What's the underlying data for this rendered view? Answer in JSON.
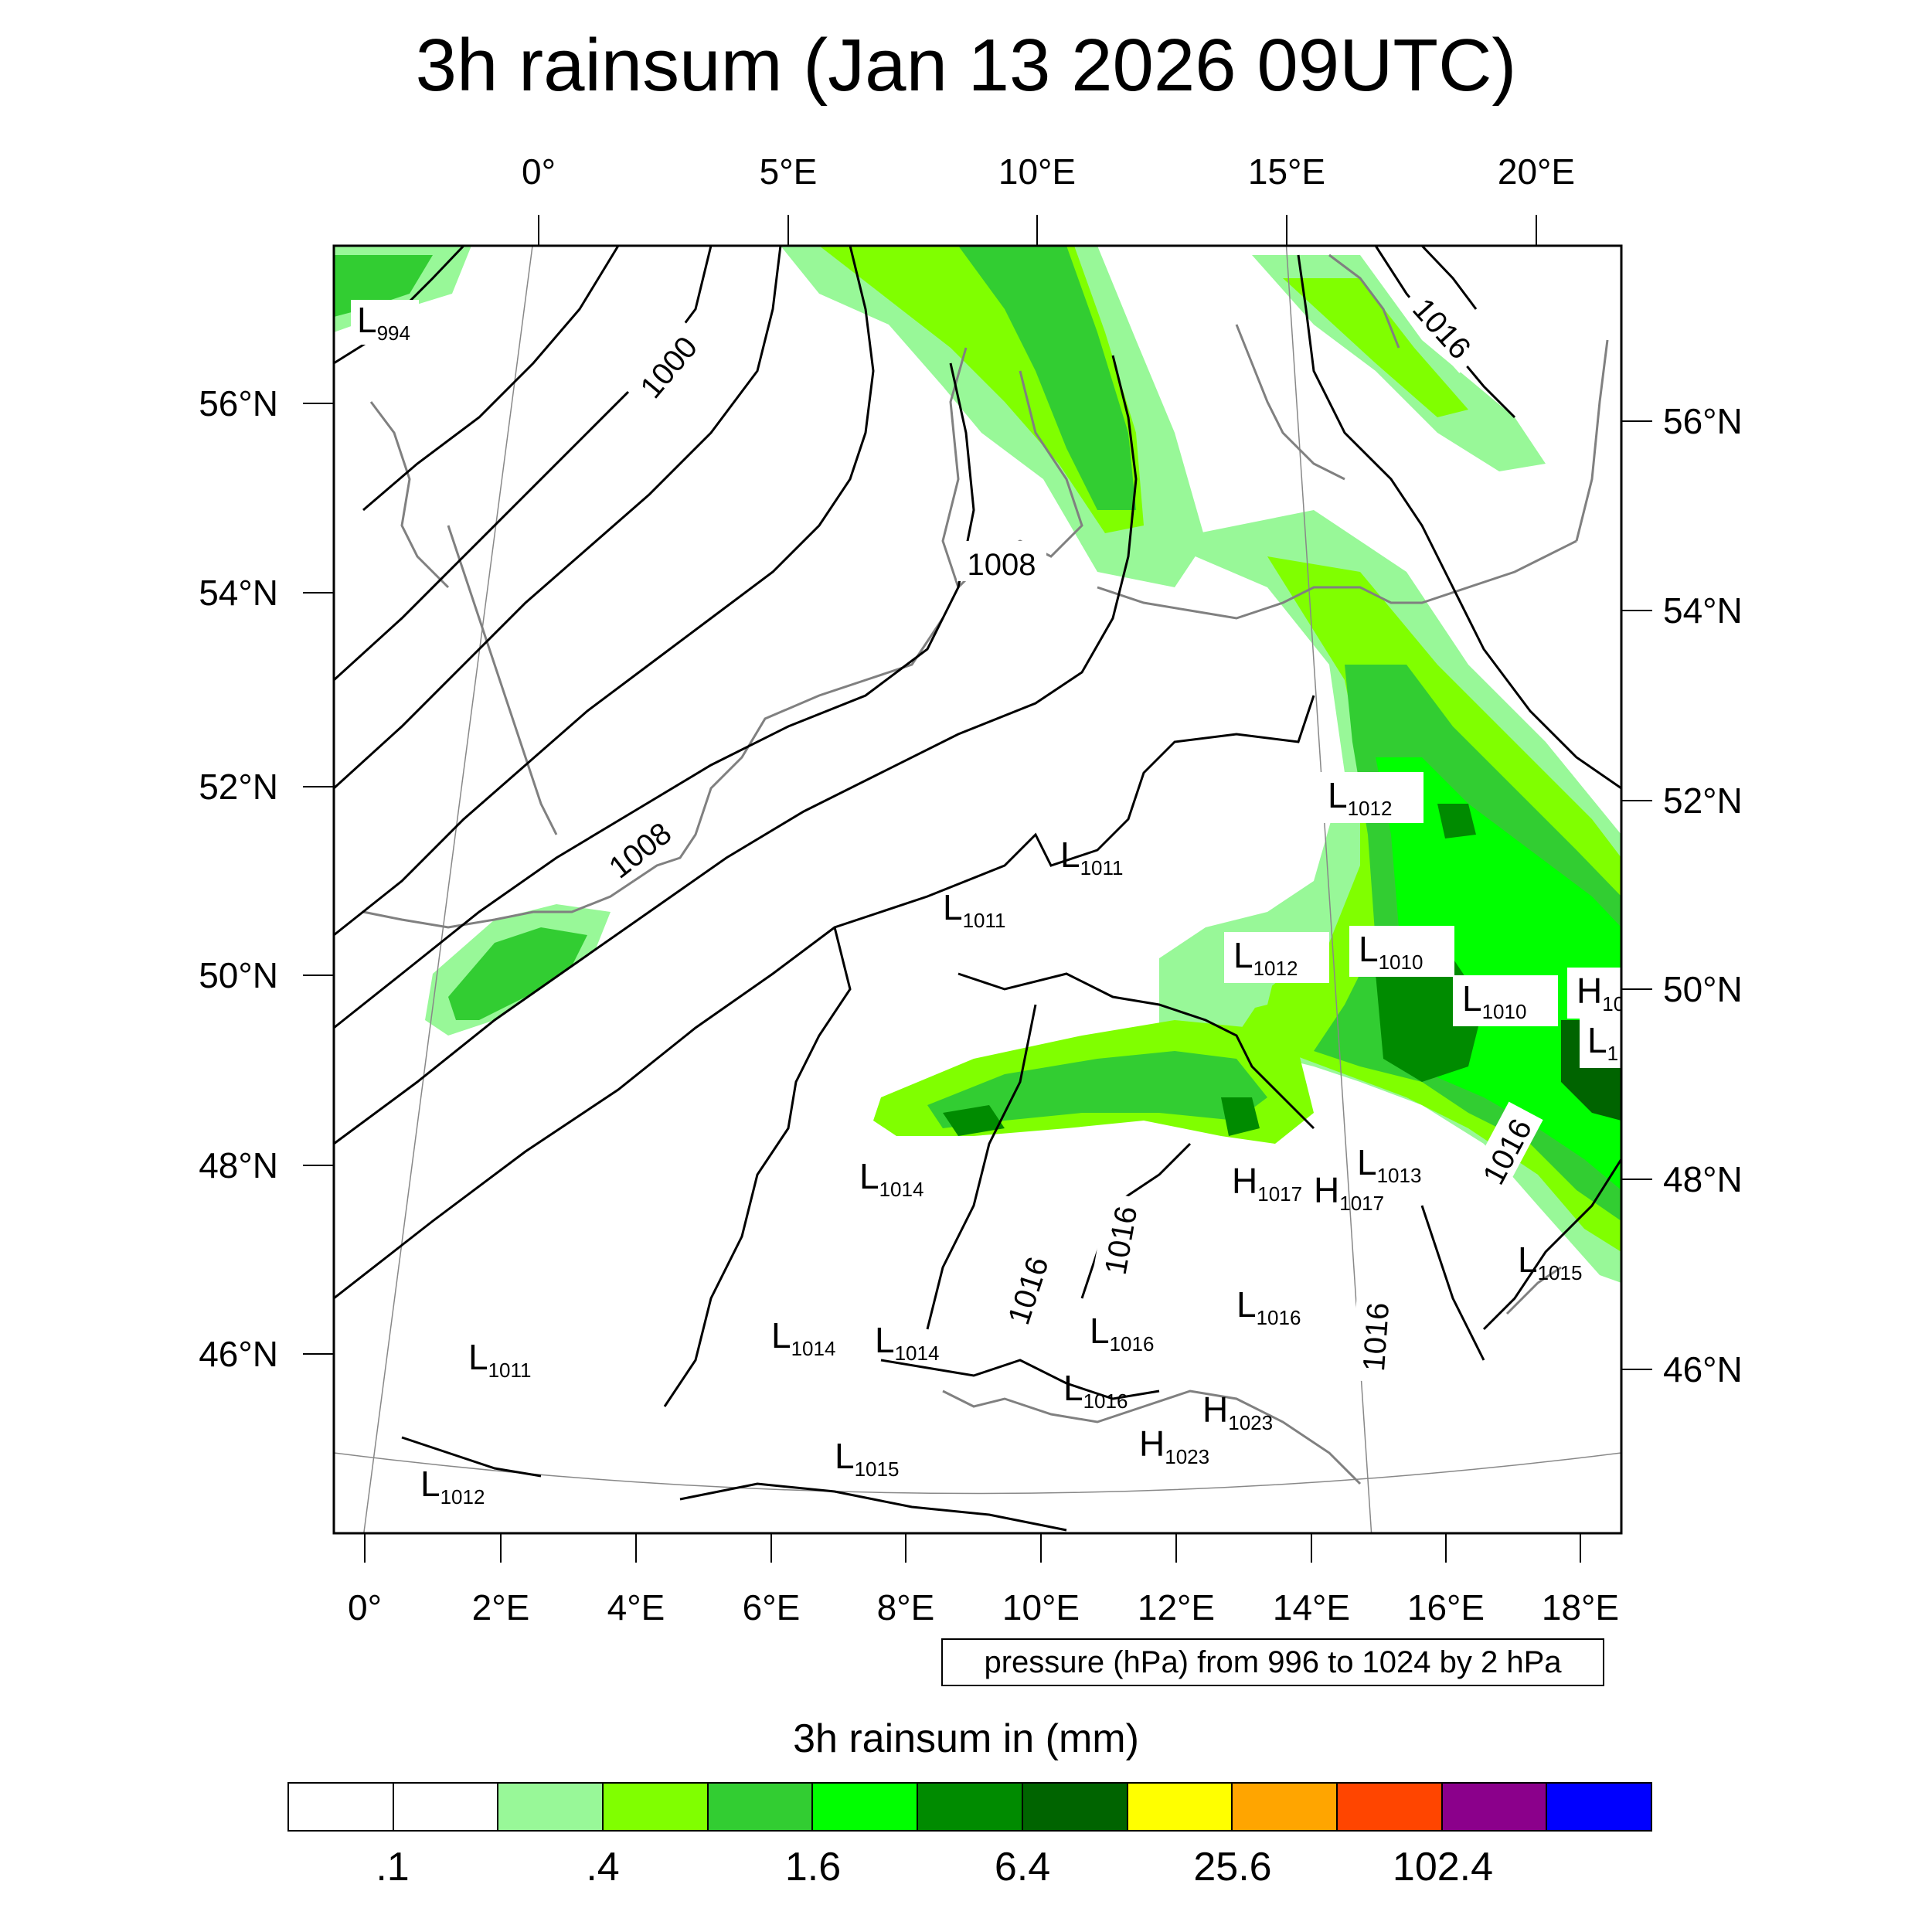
{
  "title": "3h rainsum (Jan 13 2026 09UTC)",
  "top_lon_labels": [
    "0°",
    "5°E",
    "10°E",
    "15°E",
    "20°E"
  ],
  "bottom_lon_labels": [
    "0°",
    "2°E",
    "4°E",
    "6°E",
    "8°E",
    "10°E",
    "12°E",
    "14°E",
    "16°E",
    "18°E"
  ],
  "left_lat_labels": [
    "56°N",
    "54°N",
    "52°N",
    "50°N",
    "48°N",
    "46°N"
  ],
  "right_lat_labels": [
    "56°N",
    "54°N",
    "52°N",
    "50°N",
    "48°N",
    "46°N"
  ],
  "contour_labels": [
    "1000",
    "1008",
    "1008",
    "1016",
    "1016",
    "1016",
    "1016",
    "1016"
  ],
  "pressure_centers": [
    {
      "type": "L",
      "value": "994"
    },
    {
      "type": "L",
      "value": "1012"
    },
    {
      "type": "L",
      "value": "1011"
    },
    {
      "type": "L",
      "value": "1011"
    },
    {
      "type": "L",
      "value": "1012"
    },
    {
      "type": "L",
      "value": "1010"
    },
    {
      "type": "L",
      "value": "1010"
    },
    {
      "type": "H",
      "value": "10"
    },
    {
      "type": "L",
      "value": "1"
    },
    {
      "type": "L",
      "value": "1014"
    },
    {
      "type": "H",
      "value": "1017"
    },
    {
      "type": "H",
      "value": "1017"
    },
    {
      "type": "L",
      "value": "1013"
    },
    {
      "type": "L",
      "value": "1015"
    },
    {
      "type": "L",
      "value": "1016"
    },
    {
      "type": "L",
      "value": "1011"
    },
    {
      "type": "L",
      "value": "1014"
    },
    {
      "type": "L",
      "value": "1014"
    },
    {
      "type": "L",
      "value": "1016"
    },
    {
      "type": "L",
      "value": "1016"
    },
    {
      "type": "H",
      "value": "1023"
    },
    {
      "type": "H",
      "value": "1023"
    },
    {
      "type": "L",
      "value": "1015"
    },
    {
      "type": "L",
      "value": "1012"
    }
  ],
  "info_box": "pressure (hPa) from 996 to 1024 by 2 hPa",
  "legend": {
    "title": "3h rainsum in (mm)",
    "colors": [
      "#ffffff",
      "#ffffff",
      "#98f898",
      "#80ff00",
      "#32cd32",
      "#00ff00",
      "#008b00",
      "#006400",
      "#ffff00",
      "#ffa500",
      "#ff4500",
      "#8b008b",
      "#0000ff"
    ],
    "labels": [
      ".1",
      ".4",
      "1.6",
      "6.4",
      "25.6",
      "102.4"
    ]
  },
  "colors": {
    "rain_light": "#98f898",
    "rain_lime": "#80ff00",
    "rain_mid": "#32cd32",
    "rain_bright": "#00ff00",
    "rain_dark": "#008b00",
    "rain_darkest": "#006400",
    "isobar": "#000000",
    "coastline": "#808080"
  }
}
